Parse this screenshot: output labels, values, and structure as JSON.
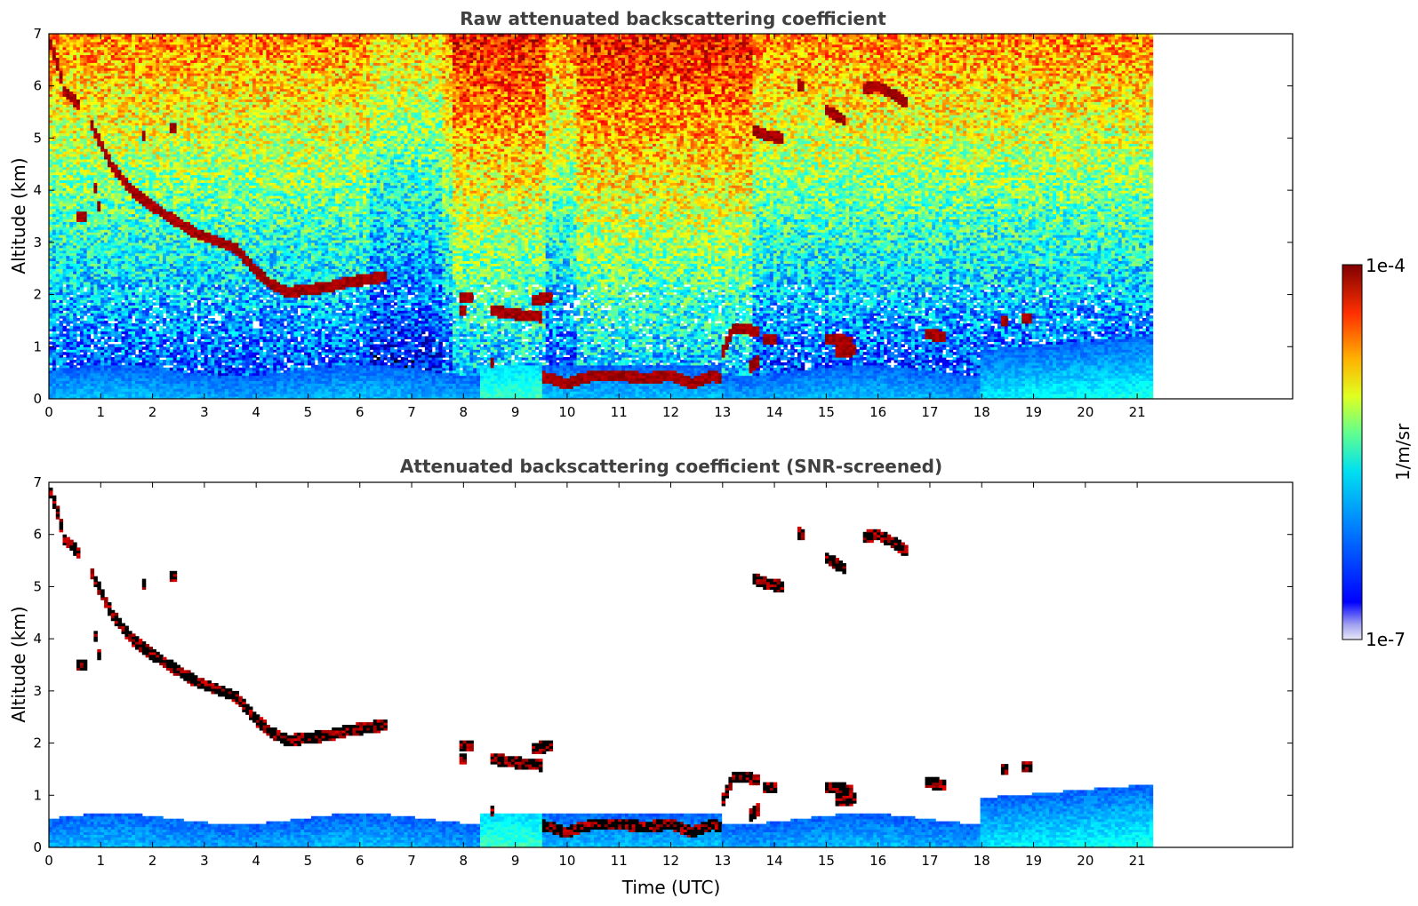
{
  "chart_data": [
    {
      "type": "heatmap",
      "title": "Raw attenuated backscattering coefficient",
      "xlabel": "",
      "ylabel": "Altitude (km)",
      "xlim": [
        0,
        24
      ],
      "ylim": [
        0,
        7
      ],
      "x_ticks": [
        "0",
        "1",
        "2",
        "3",
        "4",
        "5",
        "6",
        "7",
        "8",
        "9",
        "10",
        "11",
        "12",
        "13",
        "14",
        "15",
        "16",
        "17",
        "18",
        "19",
        "20",
        "21"
      ],
      "y_ticks": [
        "0",
        "1",
        "2",
        "3",
        "4",
        "5",
        "6",
        "7"
      ],
      "data_extent_x": [
        0,
        21.3
      ],
      "screened": false,
      "layers": [
        {
          "x": [
            0.8,
            1.2,
            1.6,
            2.0,
            2.4,
            2.8,
            3.2,
            3.6,
            4.0,
            4.3,
            4.6,
            5.0,
            5.4,
            5.8,
            6.2,
            6.5
          ],
          "y": [
            5.3,
            4.5,
            4.0,
            3.7,
            3.45,
            3.2,
            3.05,
            2.9,
            2.45,
            2.2,
            2.05,
            2.1,
            2.15,
            2.25,
            2.3,
            2.35
          ]
        },
        {
          "x": [
            0.0,
            0.15,
            0.3,
            0.45,
            0.6
          ],
          "y": [
            6.9,
            6.5,
            5.9,
            5.8,
            5.6
          ]
        },
        {
          "x": [
            0.5,
            0.75
          ],
          "y": [
            3.5,
            3.5
          ]
        },
        {
          "x": [
            0.85,
            1.0
          ],
          "y": [
            4.3,
            3.5
          ]
        },
        {
          "x": [
            1.8,
            1.85
          ],
          "y": [
            5.05,
            5.05
          ]
        },
        {
          "x": [
            2.35,
            2.45
          ],
          "y": [
            5.2,
            5.2
          ]
        },
        {
          "x": [
            7.9,
            8.2
          ],
          "y": [
            1.95,
            1.95
          ]
        },
        {
          "x": [
            7.9,
            8.05
          ],
          "y": [
            1.7,
            1.7
          ]
        },
        {
          "x": [
            8.5,
            8.9,
            9.2,
            9.5
          ],
          "y": [
            1.7,
            1.65,
            1.6,
            1.58
          ]
        },
        {
          "x": [
            9.3,
            9.7
          ],
          "y": [
            1.9,
            1.95
          ]
        },
        {
          "x": [
            8.5,
            8.6
          ],
          "y": [
            0.7,
            0.7
          ]
        },
        {
          "x": [
            9.5,
            10.0,
            10.5,
            11.0,
            11.5,
            12.0,
            12.4,
            12.8,
            13.0
          ],
          "y": [
            0.45,
            0.3,
            0.45,
            0.45,
            0.4,
            0.45,
            0.3,
            0.45,
            0.4
          ]
        },
        {
          "x": [
            13.0,
            13.2,
            13.4,
            13.7
          ],
          "y": [
            0.9,
            1.35,
            1.35,
            1.3
          ]
        },
        {
          "x": [
            13.5,
            13.7
          ],
          "y": [
            0.6,
            0.75
          ]
        },
        {
          "x": [
            13.8,
            14.05
          ],
          "y": [
            1.15,
            1.15
          ]
        },
        {
          "x": [
            14.45,
            14.6
          ],
          "y": [
            6.05,
            5.95
          ]
        },
        {
          "x": [
            13.6,
            13.9,
            14.2
          ],
          "y": [
            5.15,
            5.05,
            5.0
          ]
        },
        {
          "x": [
            15.0,
            15.35
          ],
          "y": [
            5.55,
            5.35
          ]
        },
        {
          "x": [
            15.7,
            16.0,
            16.3,
            16.6
          ],
          "y": [
            5.95,
            6.0,
            5.85,
            5.65
          ]
        },
        {
          "x": [
            15.0,
            15.5
          ],
          "y": [
            1.15,
            1.1
          ]
        },
        {
          "x": [
            15.2,
            15.6
          ],
          "y": [
            0.9,
            0.95
          ]
        },
        {
          "x": [
            16.9,
            17.3
          ],
          "y": [
            1.25,
            1.2
          ]
        },
        {
          "x": [
            18.4,
            18.5
          ],
          "y": [
            1.5,
            1.5
          ]
        },
        {
          "x": [
            18.8,
            18.95
          ],
          "y": [
            1.55,
            1.55
          ]
        }
      ]
    },
    {
      "type": "heatmap",
      "title": "Attenuated backscattering coefficient (SNR-screened)",
      "xlabel": "Time (UTC)",
      "ylabel": "Altitude (km)",
      "xlim": [
        0,
        24
      ],
      "ylim": [
        0,
        7
      ],
      "x_ticks": [
        "0",
        "1",
        "2",
        "3",
        "4",
        "5",
        "6",
        "7",
        "8",
        "9",
        "10",
        "11",
        "12",
        "13",
        "14",
        "15",
        "16",
        "17",
        "18",
        "19",
        "20",
        "21"
      ],
      "y_ticks": [
        "0",
        "1",
        "2",
        "3",
        "4",
        "5",
        "6",
        "7"
      ],
      "data_extent_x": [
        0,
        21.3
      ],
      "screened": true
    }
  ],
  "colorbar": {
    "label": "1/m/sr",
    "max_label": "1e-4",
    "min_label": "1e-7",
    "colormap": "jet",
    "scale": "log",
    "range": [
      1e-07,
      0.0001
    ]
  }
}
